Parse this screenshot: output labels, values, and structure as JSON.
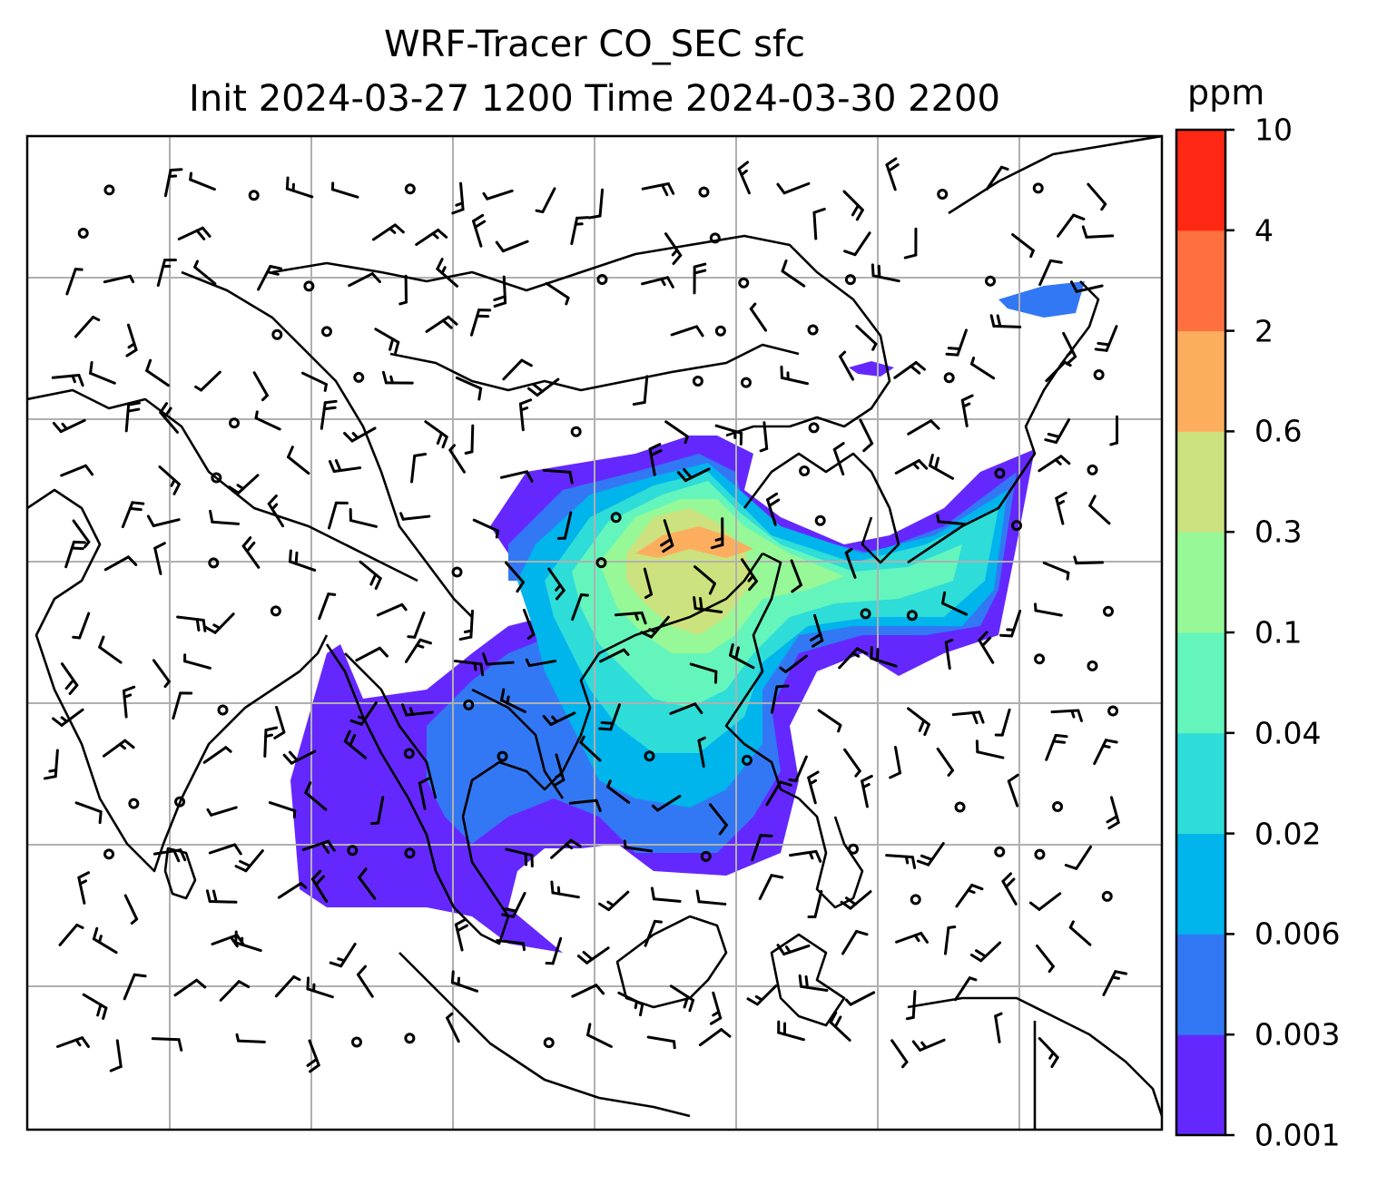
{
  "title_line1": "WRF-Tracer CO_SEC sfc",
  "title_line2": "Init 2024-03-27 1200 Time 2024-03-30 2200",
  "colorbar": {
    "unit": "ppm",
    "levels": [
      "0.001",
      "0.003",
      "0.006",
      "0.02",
      "0.04",
      "0.1",
      "0.3",
      "0.6",
      "2",
      "4",
      "10"
    ],
    "colors": [
      "#6428ff",
      "#3278f5",
      "#00b4ec",
      "#2edcd8",
      "#64f5bc",
      "#96f896",
      "#cce27e",
      "#fcae5e",
      "#ff7040",
      "#ff2814"
    ]
  },
  "map": {
    "grid": "on",
    "overlay": "wind barbs",
    "field": "CO_SEC surface tracer concentration"
  }
}
